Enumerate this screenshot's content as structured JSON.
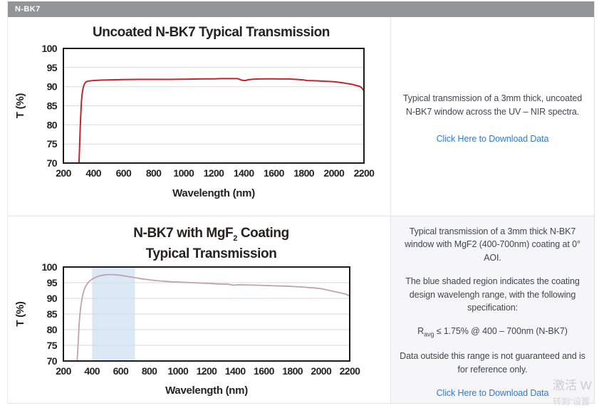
{
  "tab": {
    "label": "N-BK7"
  },
  "colors": {
    "tab_background": "#919498",
    "link_blue": "#2b7cd9",
    "chart1_line": "#c0272d",
    "chart2_line": "#c2a3a7",
    "design_band_blue": "#dbe9f6"
  },
  "sections": [
    {
      "description": "Typical transmission of a 3mm thick, uncoated N-BK7 window across the UV – NIR spectra.",
      "link_label": "Click Here to Download Data"
    },
    {
      "para1": "Typical transmission of a 3mm thick N-BK7 window with MgF2 (400-700nm) coating at 0° AOI.",
      "para2": "The blue shaded region indicates the coating design wavelengh range, with the following specification:",
      "spec": {
        "pre": "R",
        "sub": "avg",
        "post": " ≤ 1.75% @ 400 – 700nm (N-BK7)"
      },
      "para3": "Data outside this range is not guaranteed and is for reference only.",
      "link_label": "Click Here to Download Data"
    }
  ],
  "watermark": {
    "line1": "激活 W",
    "line2": "转到“设置"
  },
  "chart_data": [
    {
      "type": "line",
      "title": "Uncoated N-BK7 Typical Transmission",
      "xlabel": "Wavelength (nm)",
      "ylabel": "T (%)",
      "xlim": [
        200,
        2200
      ],
      "ylim": [
        70,
        100
      ],
      "xticks": [
        200,
        400,
        600,
        800,
        1000,
        1200,
        1400,
        1600,
        1800,
        2000,
        2200
      ],
      "yticks": [
        70,
        75,
        80,
        85,
        90,
        95,
        100
      ],
      "grid": true,
      "line_color": "#c0272d",
      "line_width": 2,
      "points": [
        [
          300,
          68
        ],
        [
          304,
          70
        ],
        [
          307,
          73.5
        ],
        [
          310,
          77
        ],
        [
          313,
          80
        ],
        [
          316,
          83
        ],
        [
          320,
          86
        ],
        [
          325,
          88.2
        ],
        [
          330,
          89.4
        ],
        [
          336,
          90.3
        ],
        [
          343,
          90.9
        ],
        [
          350,
          91.2
        ],
        [
          360,
          91.4
        ],
        [
          375,
          91.5
        ],
        [
          400,
          91.6
        ],
        [
          450,
          91.7
        ],
        [
          500,
          91.75
        ],
        [
          600,
          91.85
        ],
        [
          700,
          91.9
        ],
        [
          800,
          91.9
        ],
        [
          900,
          91.9
        ],
        [
          1000,
          91.95
        ],
        [
          1100,
          92.0
        ],
        [
          1150,
          92.05
        ],
        [
          1200,
          92.05
        ],
        [
          1250,
          92.1
        ],
        [
          1300,
          92.1
        ],
        [
          1360,
          92.1
        ],
        [
          1390,
          91.65
        ],
        [
          1410,
          91.6
        ],
        [
          1430,
          91.8
        ],
        [
          1460,
          91.95
        ],
        [
          1500,
          92.0
        ],
        [
          1550,
          92.05
        ],
        [
          1600,
          92.05
        ],
        [
          1650,
          92.0
        ],
        [
          1700,
          92.0
        ],
        [
          1750,
          91.9
        ],
        [
          1780,
          91.8
        ],
        [
          1800,
          91.75
        ],
        [
          1820,
          91.6
        ],
        [
          1850,
          91.55
        ],
        [
          1900,
          91.5
        ],
        [
          1950,
          91.4
        ],
        [
          2000,
          91.3
        ],
        [
          2030,
          91.15
        ],
        [
          2060,
          91.0
        ],
        [
          2090,
          90.8
        ],
        [
          2120,
          90.6
        ],
        [
          2150,
          90.3
        ],
        [
          2170,
          90.1
        ],
        [
          2185,
          89.7
        ],
        [
          2200,
          88.9
        ]
      ]
    },
    {
      "type": "line",
      "title": "N-BK7 with MgF2 Coating Typical Transmission",
      "title_line1_parts": {
        "pre": "N-BK7 with MgF",
        "sub": "2",
        "post": " Coating"
      },
      "title_line2": "Typical Transmission",
      "xlabel": "Wavelength (nm)",
      "ylabel": "T (%)",
      "xlim": [
        200,
        2200
      ],
      "ylim": [
        70,
        100
      ],
      "xticks": [
        200,
        400,
        600,
        800,
        1000,
        1200,
        1400,
        1600,
        1800,
        2000,
        2200
      ],
      "yticks": [
        70,
        75,
        80,
        85,
        90,
        95,
        100
      ],
      "grid": true,
      "line_color": "#c2a3a7",
      "line_width": 1.8,
      "design_band": {
        "from": 400,
        "to": 700,
        "color": "#dbe9f6"
      },
      "points": [
        [
          296,
          70
        ],
        [
          300,
          73
        ],
        [
          304,
          76.5
        ],
        [
          308,
          80
        ],
        [
          312,
          83
        ],
        [
          317,
          85.5
        ],
        [
          322,
          87.5
        ],
        [
          328,
          89.3
        ],
        [
          335,
          91
        ],
        [
          345,
          92.7
        ],
        [
          355,
          93.8
        ],
        [
          368,
          94.8
        ],
        [
          382,
          95.5
        ],
        [
          400,
          96.1
        ],
        [
          420,
          96.6
        ],
        [
          445,
          97.1
        ],
        [
          470,
          97.35
        ],
        [
          500,
          97.55
        ],
        [
          530,
          97.6
        ],
        [
          560,
          97.55
        ],
        [
          590,
          97.4
        ],
        [
          620,
          97.2
        ],
        [
          660,
          96.9
        ],
        [
          700,
          96.6
        ],
        [
          750,
          96.2
        ],
        [
          800,
          95.9
        ],
        [
          850,
          95.65
        ],
        [
          900,
          95.45
        ],
        [
          950,
          95.3
        ],
        [
          1000,
          95.2
        ],
        [
          1100,
          95.0
        ],
        [
          1200,
          94.8
        ],
        [
          1280,
          94.6
        ],
        [
          1350,
          94.5
        ],
        [
          1390,
          94.2
        ],
        [
          1420,
          94.35
        ],
        [
          1470,
          94.3
        ],
        [
          1550,
          94.2
        ],
        [
          1650,
          94.05
        ],
        [
          1750,
          93.9
        ],
        [
          1850,
          93.65
        ],
        [
          1950,
          93.35
        ],
        [
          2000,
          93.1
        ],
        [
          2040,
          92.7
        ],
        [
          2080,
          92.3
        ],
        [
          2120,
          91.9
        ],
        [
          2150,
          91.6
        ],
        [
          2175,
          91.3
        ],
        [
          2200,
          90.7
        ]
      ]
    }
  ]
}
